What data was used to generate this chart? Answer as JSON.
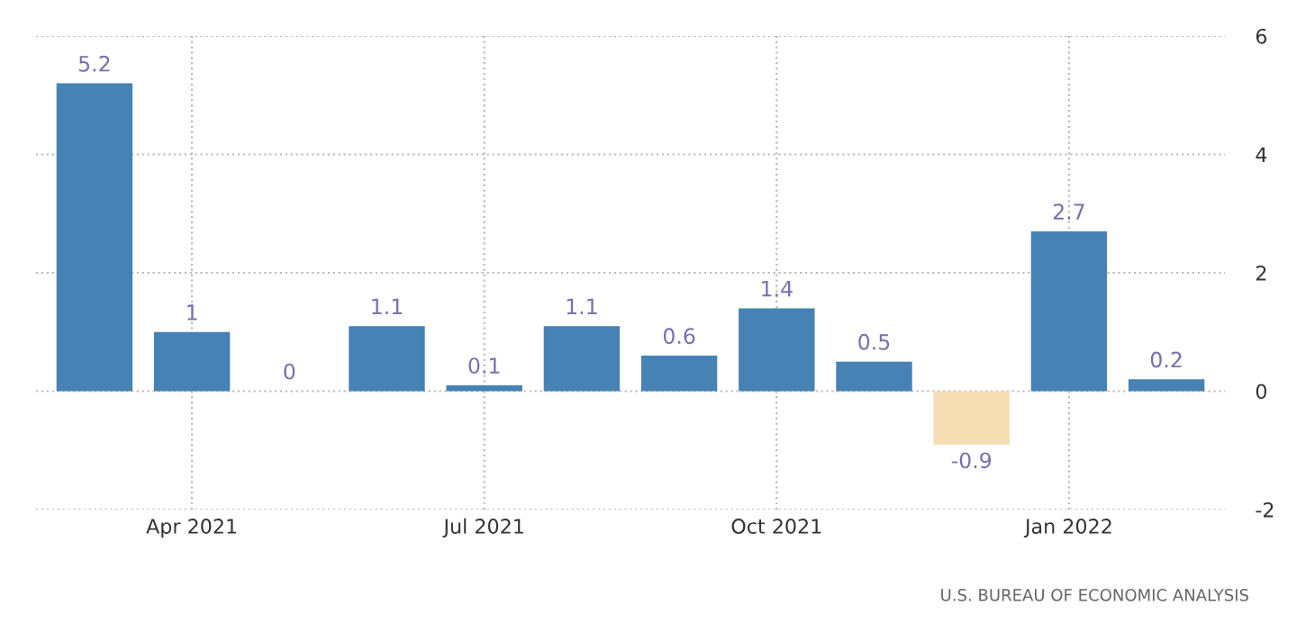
{
  "chart_data": {
    "type": "bar",
    "categories": [
      null,
      "Apr 2021",
      null,
      null,
      "Jul 2021",
      null,
      null,
      "Oct 2021",
      null,
      null,
      "Jan 2022",
      null
    ],
    "values": [
      5.2,
      1,
      0,
      1.1,
      0.1,
      1.1,
      0.6,
      1.4,
      0.5,
      -0.9,
      2.7,
      0.2
    ],
    "colors": [
      "#4682b4",
      "#4682b4",
      "#4682b4",
      "#4682b4",
      "#4682b4",
      "#4682b4",
      "#4682b4",
      "#4682b4",
      "#4682b4",
      "#f5deb3",
      "#4682b4",
      "#4682b4"
    ],
    "ylim": [
      -2,
      6
    ],
    "yticks": [
      -2,
      0,
      2,
      4,
      6
    ],
    "grid": true,
    "data_labels": true,
    "annotations": [
      "U.S. BUREAU OF ECONOMIC ANALYSIS"
    ]
  }
}
